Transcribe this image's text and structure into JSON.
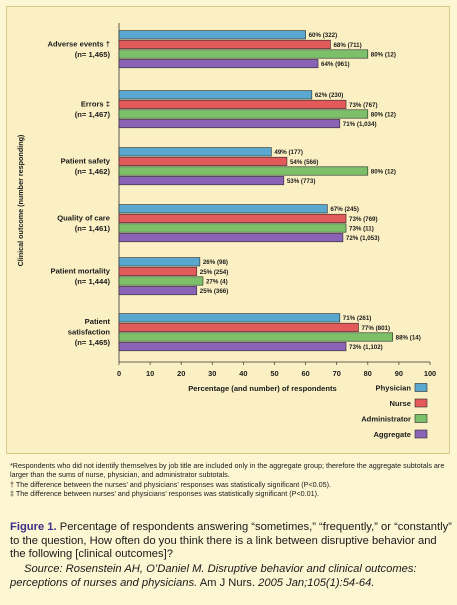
{
  "chart_data": {
    "type": "bar",
    "orientation": "horizontal",
    "ylabel": "Clinical outcome (number responding)",
    "xlabel": "Percentage (and number) of respondents",
    "xlim": [
      0,
      100
    ],
    "xticks": [
      "0",
      "10",
      "20",
      "30",
      "40",
      "50",
      "60",
      "70",
      "80",
      "90",
      "100"
    ],
    "grid": false,
    "legend_position": "bottom-right",
    "series": [
      {
        "name": "Physician",
        "color": "#5aa8d0"
      },
      {
        "name": "Nurse",
        "color": "#e35a5a"
      },
      {
        "name": "Administrator",
        "color": "#7cc06a"
      },
      {
        "name": "Aggregate",
        "color": "#8a63b6"
      }
    ],
    "groups": [
      {
        "line1": "Adverse events †",
        "line2": "(n= 1,465)",
        "values": [
          60,
          68,
          80,
          64
        ],
        "labels": [
          "60% (322)",
          "68% (711)",
          "80% (12)",
          "64% (961)"
        ]
      },
      {
        "line1": "Errors ‡",
        "line2": "(n= 1,467)",
        "values": [
          62,
          73,
          80,
          71
        ],
        "labels": [
          "62% (230)",
          "73% (767)",
          "80% (12)",
          "71% (1,034)"
        ]
      },
      {
        "line1": "Patient safety",
        "line2": "(n= 1,462)",
        "values": [
          49,
          54,
          80,
          53
        ],
        "labels": [
          "49% (177)",
          "54% (566)",
          "80% (12)",
          "53% (773)"
        ]
      },
      {
        "line1": "Quality of care",
        "line2": "(n= 1,461)",
        "values": [
          67,
          73,
          73,
          72
        ],
        "labels": [
          "67% (245)",
          "73% (769)",
          "73% (11)",
          "72% (1,053)"
        ]
      },
      {
        "line1": "Patient mortality",
        "line2": "(n= 1,444)",
        "values": [
          26,
          25,
          27,
          25
        ],
        "labels": [
          "26% (98)",
          "25% (254)",
          "27% (4)",
          "25% (366)"
        ]
      },
      {
        "line1": "Patient",
        "line2": "satisfaction",
        "line3": "(n= 1,465)",
        "values": [
          71,
          77,
          88,
          73
        ],
        "labels": [
          "71% (261)",
          "77% (801)",
          "88% (14)",
          "73% (1,102)"
        ]
      }
    ]
  },
  "footnotes": {
    "star": "*Respondents who did not identify themselves by job title are included only in the aggregate group; therefore the aggregate subtotals are larger than the sums of nurse, physician, and administrator subtotals.",
    "dagger": "† The difference between the nurses’ and physicians’ responses was statistically significant (P<0.05).",
    "ddagger": "‡ The difference between nurses’ and physicians’ responses was statistically significant (P<0.01)."
  },
  "caption": {
    "label": "Figure 1.",
    "text": " Percentage of respondents answering “sometimes,” “frequently,” or “constantly” to the question, How often do you think there is a link between disruptive behavior and the following [clinical outcomes]?"
  },
  "source": {
    "italic": "Source: Rosenstein AH, O’Daniel M. Disruptive behavior and clinical outcomes: perceptions of nurses and physicians.",
    "journal": " Am J Nurs.",
    "rest": " 2005 Jan;105(1):54-64."
  }
}
